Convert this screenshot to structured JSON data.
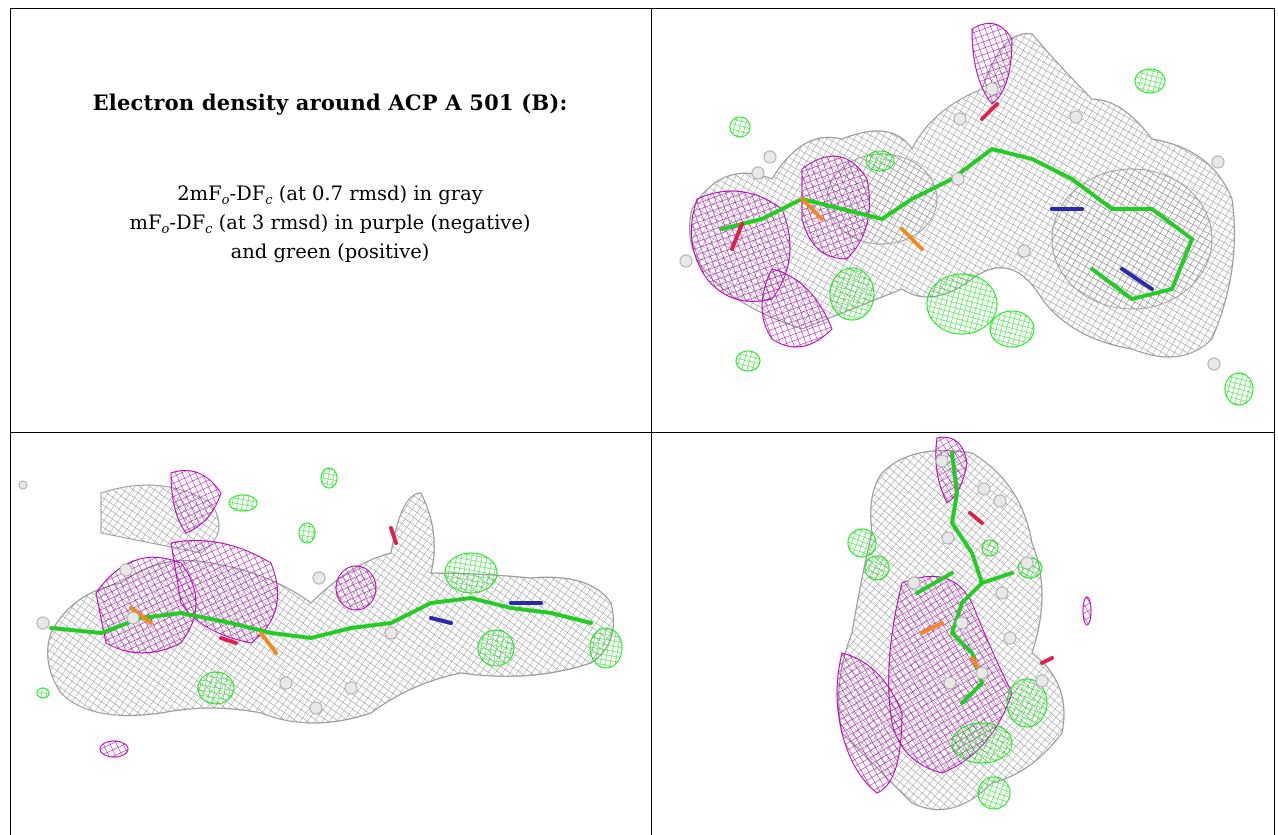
{
  "caption": {
    "title": "Electron density around ACP A 501 (B):",
    "line1": {
      "a": "2mF",
      "a_sub": "o",
      "b": "-DF",
      "b_sub": "c",
      "c": " (at 0.7 rmsd) in gray"
    },
    "line2": {
      "a": "mF",
      "a_sub": "o",
      "b": "-DF",
      "b_sub": "c",
      "c": " (at 3 rmsd) in purple (negative)"
    },
    "line3": "and green (positive)"
  },
  "colors": {
    "gray_mesh": "#8c8c8c",
    "purple_mesh": "#b400b4",
    "green_mesh": "#19e619",
    "carbon": "#22cc22",
    "nitrogen": "#2a2aa8",
    "oxygen": "#e0204a",
    "phosphorus": "#f08a1e",
    "hydrogen": "#e8e8e8"
  },
  "panels": [
    {
      "view": "top-right"
    },
    {
      "view": "bottom-left"
    },
    {
      "view": "bottom-right"
    }
  ]
}
